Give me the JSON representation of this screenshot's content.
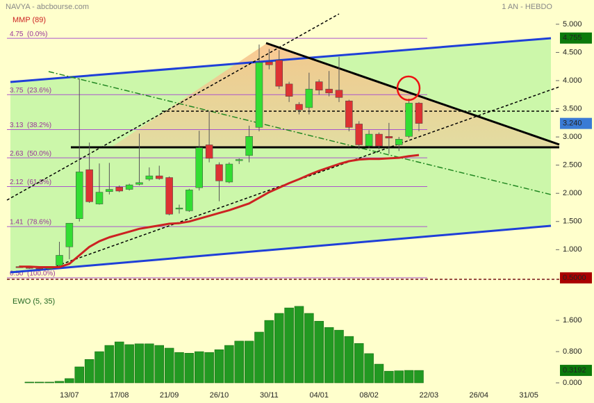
{
  "chart_data": [
    {
      "type": "candlestick",
      "title": "NAVYA - abcbourse.com",
      "subtitle": "1 AN - HEBDO",
      "categories": [
        null,
        null,
        null,
        null,
        null,
        "13/07",
        null,
        null,
        null,
        null,
        "17/08",
        null,
        null,
        null,
        null,
        "21/09",
        null,
        null,
        null,
        null,
        "26/10",
        null,
        null,
        null,
        null,
        "30/11",
        null,
        null,
        null,
        null,
        "04/01",
        null,
        null,
        null,
        null,
        "08/02",
        null,
        null,
        null,
        null,
        null,
        "22/03",
        null,
        null,
        null,
        null,
        "26/04",
        null,
        null,
        null,
        null,
        "31/05",
        null,
        null
      ],
      "open": [
        0.7,
        0.68,
        0.67,
        0.66,
        0.72,
        1.05,
        1.55,
        2.42,
        1.81,
        2.03,
        2.11,
        2.07,
        2.16,
        2.25,
        2.31,
        2.28,
        1.72,
        1.69,
        2.1,
        2.86,
        2.51,
        2.2,
        2.58,
        2.67,
        3.17,
        4.33,
        4.36,
        3.94,
        3.58,
        3.52,
        3.98,
        3.85,
        3.83,
        3.64,
        3.23,
        2.84,
        3.05,
        3.01,
        2.86,
        3.01,
        3.6,
        null,
        null,
        null,
        null,
        null,
        null,
        null,
        null,
        null,
        null,
        null,
        null,
        null
      ],
      "high": [
        0.72,
        0.69,
        0.68,
        0.68,
        1.14,
        1.47,
        4.04,
        2.9,
        2.53,
        2.54,
        2.14,
        2.17,
        3.06,
        2.46,
        2.49,
        2.3,
        1.8,
        2.08,
        3.11,
        3.46,
        2.55,
        2.55,
        2.62,
        3.2,
        4.64,
        4.56,
        4.54,
        3.98,
        3.62,
        4.14,
        4.02,
        4.17,
        4.42,
        3.66,
        3.28,
        3.12,
        3.08,
        3.25,
        3.0,
        3.68,
        3.62,
        null,
        null,
        null,
        null,
        null,
        null,
        null,
        null,
        null,
        null,
        null,
        null,
        null
      ],
      "low": [
        0.68,
        0.66,
        0.65,
        0.65,
        0.7,
        0.83,
        1.5,
        1.83,
        1.8,
        1.98,
        2.02,
        2.05,
        2.14,
        2.22,
        2.24,
        1.61,
        1.64,
        1.67,
        2.05,
        2.55,
        1.86,
        2.18,
        2.52,
        2.55,
        3.1,
        4.2,
        3.85,
        3.62,
        3.4,
        3.4,
        3.75,
        3.72,
        3.62,
        3.1,
        2.78,
        2.8,
        2.78,
        2.7,
        2.75,
        2.98,
        3.1,
        null,
        null,
        null,
        null,
        null,
        null,
        null,
        null,
        null,
        null,
        null,
        null,
        null
      ],
      "close": [
        0.68,
        0.67,
        0.66,
        0.67,
        0.9,
        1.47,
        2.38,
        1.85,
        2.02,
        2.07,
        2.04,
        2.15,
        2.19,
        2.31,
        2.26,
        1.63,
        1.74,
        2.06,
        2.81,
        2.62,
        2.22,
        2.52,
        2.6,
        3.01,
        4.32,
        4.28,
        3.9,
        3.72,
        3.48,
        3.85,
        3.83,
        3.78,
        3.7,
        3.17,
        2.86,
        3.05,
        2.84,
        2.98,
        2.96,
        3.6,
        3.24,
        null,
        null,
        null,
        null,
        null,
        null,
        null,
        null,
        null,
        null,
        null,
        null,
        null
      ],
      "up_color": "#33dd33",
      "down_color": "#dd3333",
      "series": [
        {
          "name": "MMP (89)",
          "color": "#cc2222",
          "values": [
            0.7,
            0.7,
            0.69,
            0.69,
            0.69,
            0.75,
            0.9,
            1.05,
            1.15,
            1.22,
            1.27,
            1.32,
            1.37,
            1.4,
            1.43,
            1.46,
            1.47,
            1.5,
            1.55,
            1.6,
            1.65,
            1.7,
            1.76,
            1.82,
            1.92,
            2.02,
            2.1,
            2.18,
            2.25,
            2.33,
            2.4,
            2.46,
            2.52,
            2.57,
            2.6,
            2.61,
            2.61,
            2.62,
            2.63,
            2.66,
            2.68,
            null,
            null,
            null,
            null,
            null,
            null,
            null,
            null,
            null,
            null,
            null,
            null,
            null
          ]
        }
      ],
      "levels": [
        {
          "value": 4.75,
          "label": "4.75  (0.0%)"
        },
        {
          "value": 3.75,
          "label": "3.75  (23.6%)"
        },
        {
          "value": 3.13,
          "label": "3.13  (38.2%)"
        },
        {
          "value": 2.63,
          "label": "2.63  (50.0%)"
        },
        {
          "value": 2.12,
          "label": "2.12  (61.8%)"
        },
        {
          "value": 1.41,
          "label": "1.41  (78.6%)"
        },
        {
          "value": 0.5,
          "label": "0.50  (100.0%)"
        }
      ],
      "level_color": "#aa55cc",
      "ylim": [
        0.4,
        5.43
      ],
      "yticks": [
        {
          "value": 5,
          "label": "5.000"
        },
        {
          "value": 4.5,
          "label": "4.500"
        },
        {
          "value": 4,
          "label": "4.000"
        },
        {
          "value": 3.5,
          "label": "3.500"
        },
        {
          "value": 3,
          "label": "3.000"
        },
        {
          "value": 2.5,
          "label": "2.500"
        },
        {
          "value": 2,
          "label": "2.000"
        },
        {
          "value": 1.5,
          "label": "1.500"
        },
        {
          "value": 1,
          "label": "1.000"
        }
      ],
      "price_markers": [
        {
          "value": 4.755,
          "label": "4.755",
          "color": "#0b7a0b"
        },
        {
          "value": 3.24,
          "label": "3.240",
          "color": "#3a7bd5"
        },
        {
          "value": 0.5,
          "label": "0.5000",
          "color": "#aa0000"
        }
      ]
    },
    {
      "type": "bar",
      "title": "EWO (5, 35)",
      "color": "#229922",
      "values": [
        null,
        0.02,
        0.02,
        0.02,
        0.04,
        0.11,
        0.41,
        0.6,
        0.8,
        0.96,
        1.05,
        0.98,
        1.0,
        1.0,
        0.96,
        0.89,
        0.78,
        0.76,
        0.8,
        0.78,
        0.85,
        0.96,
        1.07,
        1.07,
        1.3,
        1.6,
        1.78,
        1.92,
        1.96,
        1.78,
        1.58,
        1.42,
        1.35,
        1.19,
        1.01,
        0.75,
        0.48,
        0.3,
        0.31,
        0.32,
        0.3192,
        null,
        null,
        null,
        null,
        null,
        null,
        null,
        null,
        null,
        null,
        null,
        null,
        null
      ],
      "ylim": [
        -0.16,
        2.42
      ],
      "yticks": [
        {
          "value": 1.6,
          "label": "1.600"
        },
        {
          "value": 0.8,
          "label": "0.800"
        },
        {
          "value": 0,
          "label": "0.000"
        }
      ],
      "price_markers": [
        {
          "value": 0.3192,
          "label": "0.3192",
          "color": "#0b7a0b"
        }
      ]
    }
  ]
}
